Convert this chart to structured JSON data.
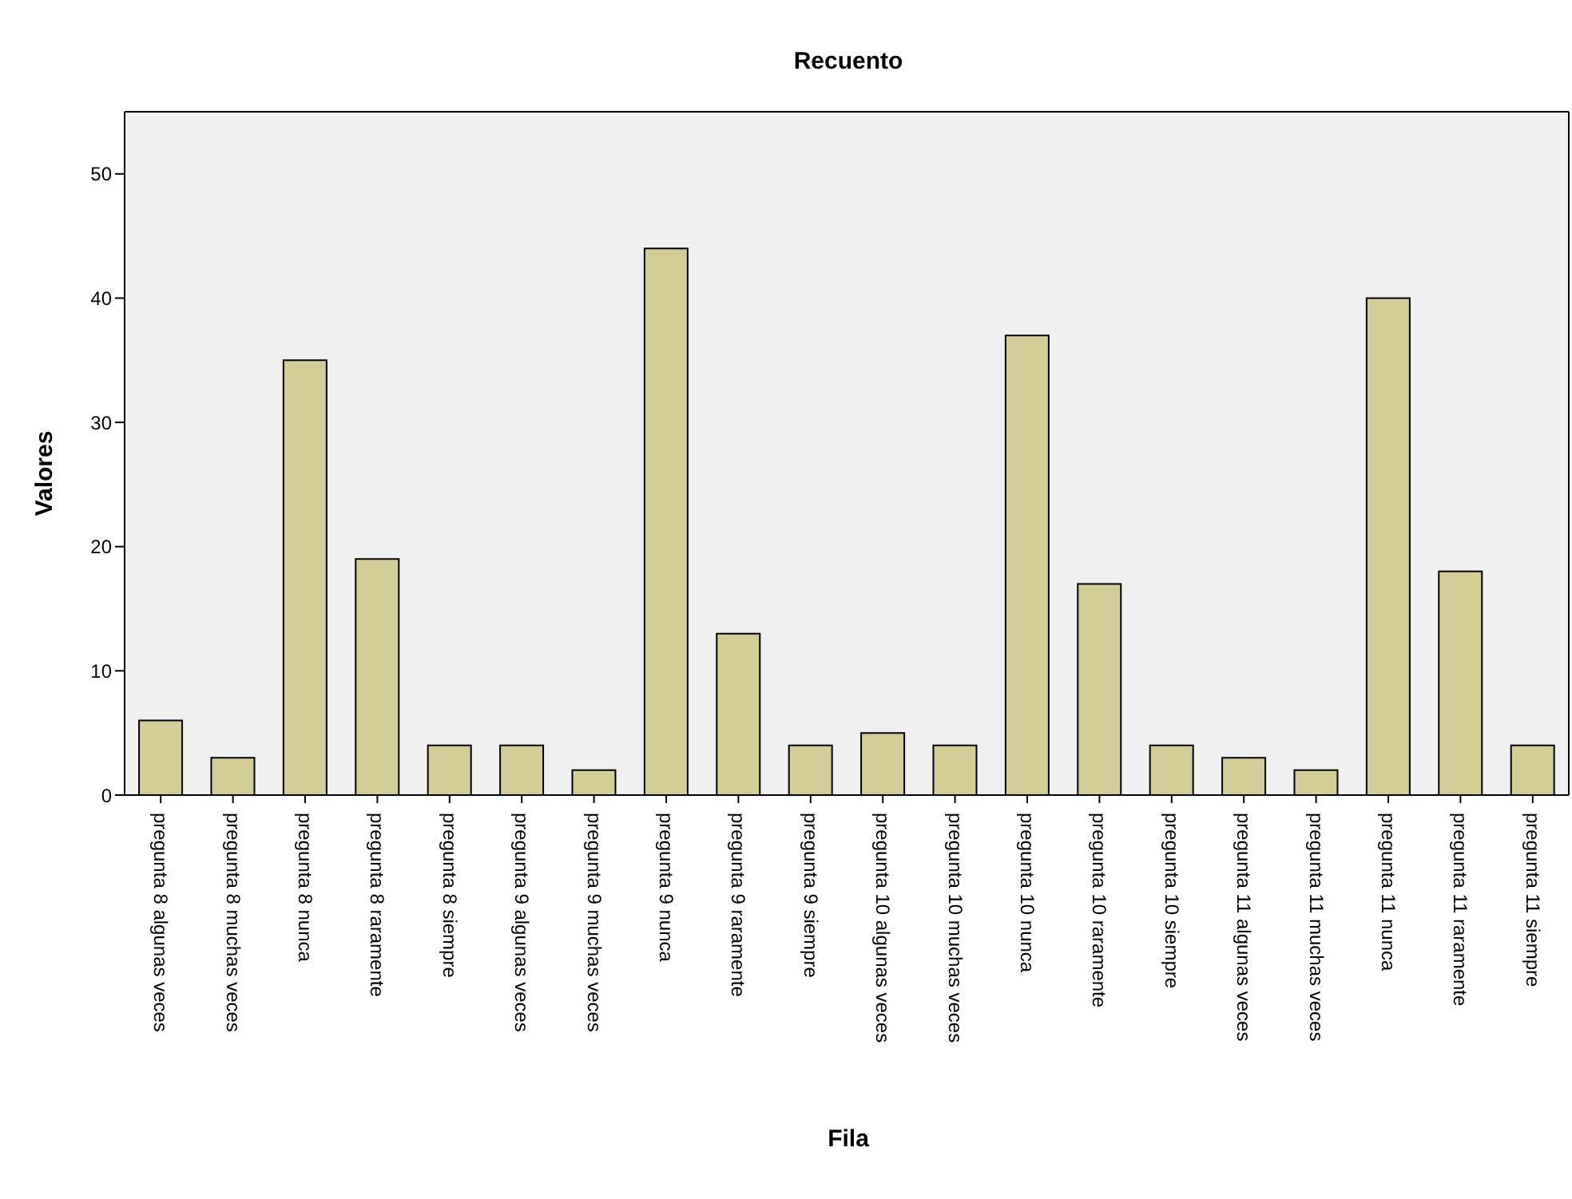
{
  "chart_data": {
    "type": "bar",
    "title": "Recuento",
    "xlabel": "Fila",
    "ylabel": "Valores",
    "categories": [
      "pregunta 8 algunas veces",
      "pregunta 8 muchas veces",
      "pregunta 8 nunca",
      "pregunta 8 raramente",
      "pregunta 8 siempre",
      "pregunta 9 algunas veces",
      "pregunta 9 muchas veces",
      "pregunta 9 nunca",
      "pregunta 9 raramente",
      "pregunta 9 siempre",
      "pregunta 10 algunas veces",
      "pregunta 10 muchas veces",
      "pregunta 10 nunca",
      "pregunta 10 raramente",
      "pregunta 10 siempre",
      "pregunta 11 algunas veces",
      "pregunta 11 muchas veces",
      "pregunta 11 nunca",
      "pregunta 11 raramente",
      "pregunta 11 siempre"
    ],
    "values": [
      6,
      3,
      35,
      19,
      4,
      4,
      2,
      44,
      13,
      4,
      5,
      4,
      37,
      17,
      4,
      3,
      2,
      40,
      18,
      4
    ],
    "color": "#d3ce97",
    "ylim": [
      0,
      55
    ],
    "yticks": [
      0,
      10,
      20,
      30,
      40,
      50
    ]
  }
}
